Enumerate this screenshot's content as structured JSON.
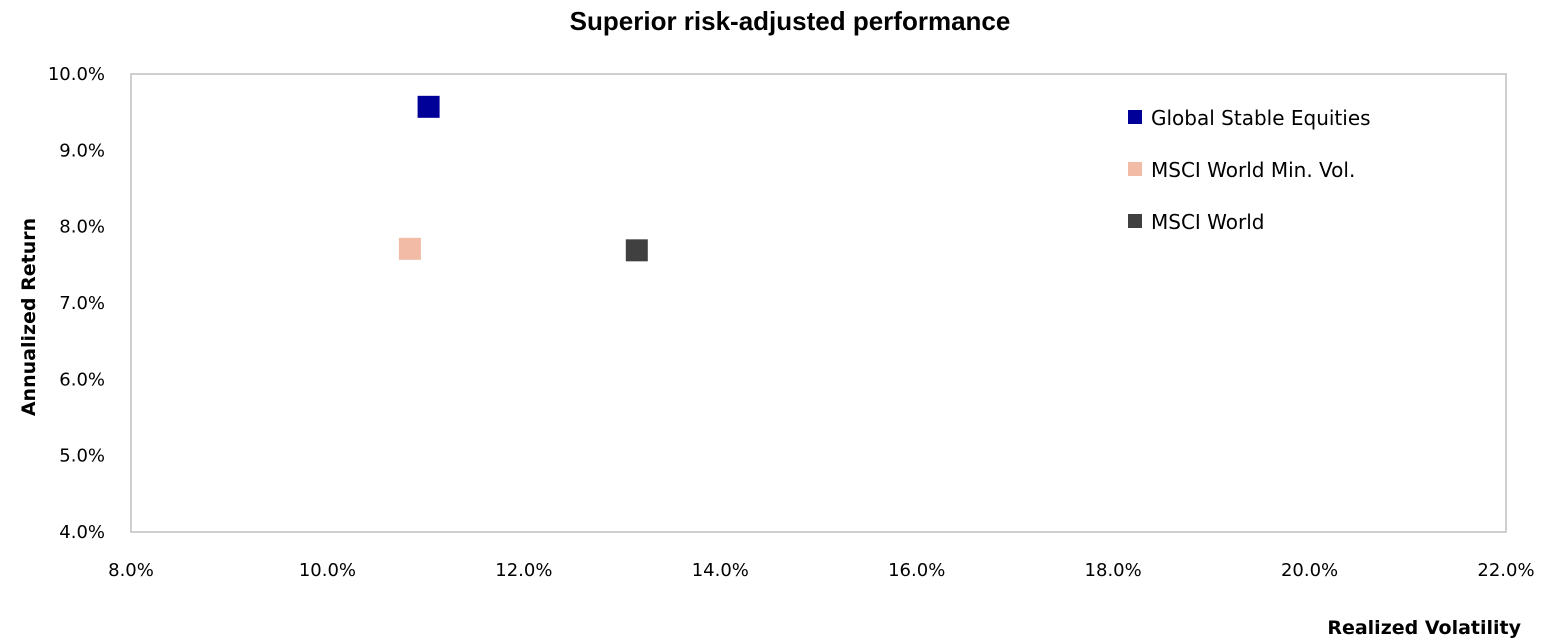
{
  "chart_data": {
    "type": "scatter",
    "title": "Superior risk-adjusted performance",
    "xlabel": "Realized Volatility",
    "ylabel": "Annualized Return",
    "xlim": [
      0.08,
      0.22
    ],
    "ylim": [
      0.04,
      0.1
    ],
    "x_ticks": [
      "8.0%",
      "10.0%",
      "12.0%",
      "14.0%",
      "16.0%",
      "18.0%",
      "20.0%",
      "22.0%"
    ],
    "y_ticks": [
      "10.0%",
      "9.0%",
      "8.0%",
      "7.0%",
      "6.0%",
      "5.0%",
      "4.0%"
    ],
    "grid": false,
    "legend_position": "top-right",
    "marker": "square",
    "series": [
      {
        "name": "Global Stable Equities",
        "color": "#000099",
        "points": [
          {
            "x": 0.1103,
            "y": 0.0957
          }
        ]
      },
      {
        "name": "MSCI World Min. Vol.",
        "color": "#F2BBA6",
        "points": [
          {
            "x": 0.1084,
            "y": 0.0771
          }
        ]
      },
      {
        "name": "MSCI World",
        "color": "#404040",
        "points": [
          {
            "x": 0.1315,
            "y": 0.0769
          }
        ]
      }
    ]
  }
}
